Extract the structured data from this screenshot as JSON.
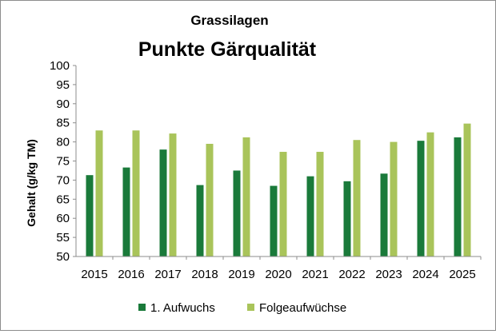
{
  "chart_data": {
    "type": "bar",
    "title": "Grassilagen",
    "subtitle": "Punkte Gärqualität",
    "xlabel": "",
    "ylabel": "Gehalt (g/kg TM)",
    "ylim": [
      50,
      100
    ],
    "yticks": [
      "50",
      "55",
      "60",
      "65",
      "70",
      "75",
      "80",
      "85",
      "90",
      "95",
      "100"
    ],
    "categories": [
      "2015",
      "2016",
      "2017",
      "2018",
      "2019",
      "2020",
      "2021",
      "2022",
      "2023",
      "2024",
      "2025"
    ],
    "series": [
      {
        "name": "1. Aufwuchs",
        "color": "#1a7a3a",
        "values": [
          71.3,
          73.3,
          78.0,
          68.7,
          72.5,
          68.5,
          71.0,
          69.7,
          71.7,
          80.3,
          81.2
        ]
      },
      {
        "name": "Folgeaufwüchse",
        "color": "#a9c45a",
        "values": [
          83.0,
          83.0,
          82.2,
          79.5,
          81.2,
          77.4,
          77.4,
          80.5,
          80.0,
          82.5,
          84.8
        ]
      }
    ],
    "grid": false,
    "legend": "bottom"
  }
}
